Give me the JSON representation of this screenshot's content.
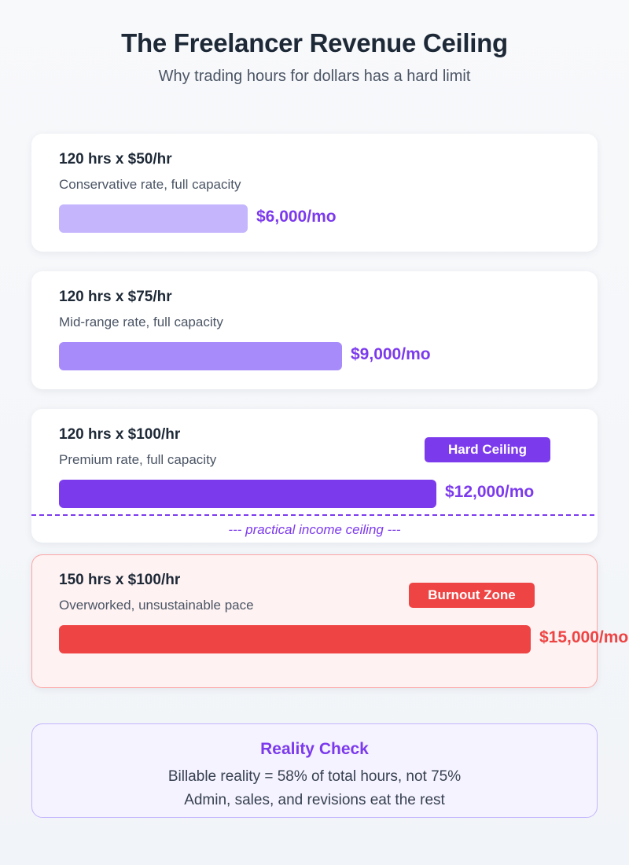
{
  "header": {
    "title": "The Freelancer Revenue Ceiling",
    "subtitle": "Why trading hours for dollars has a hard limit"
  },
  "chart_data": {
    "type": "bar",
    "orientation": "horizontal",
    "unit": "$/mo",
    "bars": [
      {
        "title": "120 hrs x $50/hr",
        "description": "Conservative rate, full capacity",
        "hours": 120,
        "rate": 50,
        "value": 6000,
        "value_label": "$6,000/mo",
        "color": "#c4b5fd",
        "label_color": "#7c3aed"
      },
      {
        "title": "120 hrs x $75/hr",
        "description": "Mid-range rate, full capacity",
        "hours": 120,
        "rate": 75,
        "value": 9000,
        "value_label": "$9,000/mo",
        "color": "#a78bfa",
        "label_color": "#7c3aed"
      },
      {
        "title": "120 hrs x $100/hr",
        "description": "Premium rate, full capacity",
        "hours": 120,
        "rate": 100,
        "value": 12000,
        "value_label": "$12,000/mo",
        "color": "#7c3aed",
        "label_color": "#7c3aed",
        "badge": "Hard Ceiling",
        "badge_color": "#7c3aed"
      },
      {
        "title": "150 hrs x $100/hr",
        "description": "Overworked, unsustainable pace",
        "hours": 150,
        "rate": 100,
        "value": 15000,
        "value_label": "$15,000/mo",
        "color": "#ef4444",
        "label_color": "#ef4444",
        "badge": "Burnout Zone",
        "badge_color": "#ef4444",
        "zone": "burnout"
      }
    ],
    "ceiling": {
      "value": 12000,
      "label": "--- practical income ceiling ---",
      "color": "#7c3aed"
    }
  },
  "reality_check": {
    "title": "Reality Check",
    "line1": "Billable reality = 58% of total hours, not 75%",
    "line2": "Admin, sales, and revisions eat the rest"
  }
}
